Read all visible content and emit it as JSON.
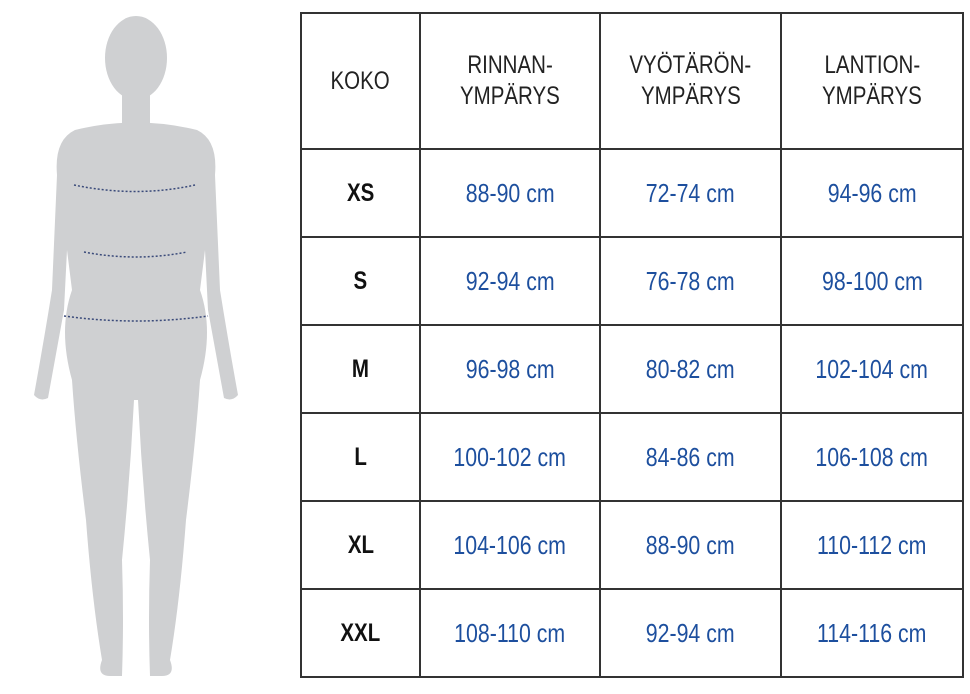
{
  "colors": {
    "value_text": "#1d4f9e",
    "figure": "#cfd0d2",
    "measure_line": "#3a4a7a"
  },
  "figure": {
    "icon": "female-body-silhouette"
  },
  "table": {
    "headers": [
      {
        "line1": "KOKO",
        "line2": ""
      },
      {
        "line1": "RINNAN-",
        "line2": "YMPÄRYS"
      },
      {
        "line1": "VYÖTÄRÖN-",
        "line2": "YMPÄRYS"
      },
      {
        "line1": "LANTION-",
        "line2": "YMPÄRYS"
      }
    ],
    "rows": [
      {
        "size": "XS",
        "chest": "88-90 cm",
        "waist": "72-74 cm",
        "hip": "94-96 cm"
      },
      {
        "size": "S",
        "chest": "92-94 cm",
        "waist": "76-78 cm",
        "hip": "98-100 cm"
      },
      {
        "size": "M",
        "chest": "96-98 cm",
        "waist": "80-82 cm",
        "hip": "102-104 cm"
      },
      {
        "size": "L",
        "chest": "100-102 cm",
        "waist": "84-86 cm",
        "hip": "106-108 cm"
      },
      {
        "size": "XL",
        "chest": "104-106 cm",
        "waist": "88-90 cm",
        "hip": "110-112 cm"
      },
      {
        "size": "XXL",
        "chest": "108-110 cm",
        "waist": "92-94 cm",
        "hip": "114-116 cm"
      }
    ]
  }
}
